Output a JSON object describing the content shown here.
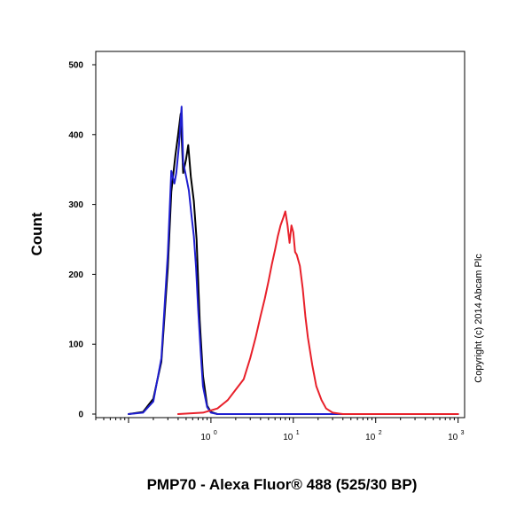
{
  "chart_data": {
    "type": "line",
    "title": "",
    "xlabel": "PMP70 - Alexa Fluor® 488 (525/30 BP)",
    "ylabel": "Count",
    "x_scale": "log",
    "xlim": [
      0.04,
      1200
    ],
    "ylim": [
      0,
      520
    ],
    "y_ticks": [
      0,
      100,
      200,
      300,
      400,
      500
    ],
    "x_ticks": [
      {
        "value": 1,
        "base": "10",
        "exp": "0"
      },
      {
        "value": 10,
        "base": "10",
        "exp": "1"
      },
      {
        "value": 100,
        "base": "10",
        "exp": "2"
      },
      {
        "value": 1000,
        "base": "10",
        "exp": "3"
      }
    ],
    "grid": false,
    "legend": "none",
    "annotation": "Copyright (c) 2014 Abcam Plc",
    "series": [
      {
        "color": "#000000",
        "points": [
          [
            0.1,
            0
          ],
          [
            0.15,
            3
          ],
          [
            0.2,
            22
          ],
          [
            0.25,
            75
          ],
          [
            0.3,
            210
          ],
          [
            0.33,
            318
          ],
          [
            0.37,
            370
          ],
          [
            0.4,
            400
          ],
          [
            0.43,
            430
          ],
          [
            0.46,
            345
          ],
          [
            0.5,
            365
          ],
          [
            0.53,
            385
          ],
          [
            0.57,
            340
          ],
          [
            0.62,
            305
          ],
          [
            0.67,
            250
          ],
          [
            0.73,
            135
          ],
          [
            0.8,
            55
          ],
          [
            0.9,
            12
          ],
          [
            1.0,
            3
          ],
          [
            1.2,
            0
          ],
          [
            1000,
            0
          ]
        ]
      },
      {
        "color": "#1f1fd0",
        "points": [
          [
            0.1,
            0
          ],
          [
            0.15,
            2
          ],
          [
            0.2,
            18
          ],
          [
            0.25,
            80
          ],
          [
            0.3,
            230
          ],
          [
            0.33,
            348
          ],
          [
            0.36,
            330
          ],
          [
            0.38,
            345
          ],
          [
            0.41,
            385
          ],
          [
            0.44,
            440
          ],
          [
            0.46,
            360
          ],
          [
            0.5,
            340
          ],
          [
            0.54,
            320
          ],
          [
            0.58,
            285
          ],
          [
            0.62,
            255
          ],
          [
            0.66,
            210
          ],
          [
            0.7,
            150
          ],
          [
            0.75,
            90
          ],
          [
            0.8,
            40
          ],
          [
            0.9,
            10
          ],
          [
            1.0,
            2
          ],
          [
            1.2,
            0
          ],
          [
            1000,
            0
          ]
        ]
      },
      {
        "color": "#e8202a",
        "points": [
          [
            0.4,
            0
          ],
          [
            0.8,
            2
          ],
          [
            1.2,
            8
          ],
          [
            1.6,
            20
          ],
          [
            2.0,
            35
          ],
          [
            2.5,
            50
          ],
          [
            3.0,
            80
          ],
          [
            3.5,
            110
          ],
          [
            4.0,
            140
          ],
          [
            4.5,
            165
          ],
          [
            5.0,
            190
          ],
          [
            5.5,
            215
          ],
          [
            6.0,
            235
          ],
          [
            6.5,
            255
          ],
          [
            7.0,
            270
          ],
          [
            7.5,
            280
          ],
          [
            8.0,
            290
          ],
          [
            8.5,
            270
          ],
          [
            9.0,
            245
          ],
          [
            9.5,
            270
          ],
          [
            10.0,
            260
          ],
          [
            10.5,
            232
          ],
          [
            11.0,
            228
          ],
          [
            12.0,
            212
          ],
          [
            13.0,
            180
          ],
          [
            14.0,
            140
          ],
          [
            15.0,
            110
          ],
          [
            17.0,
            70
          ],
          [
            19.0,
            40
          ],
          [
            22.0,
            20
          ],
          [
            25.0,
            8
          ],
          [
            30.0,
            2
          ],
          [
            40.0,
            0
          ],
          [
            1000,
            0
          ]
        ]
      }
    ]
  }
}
